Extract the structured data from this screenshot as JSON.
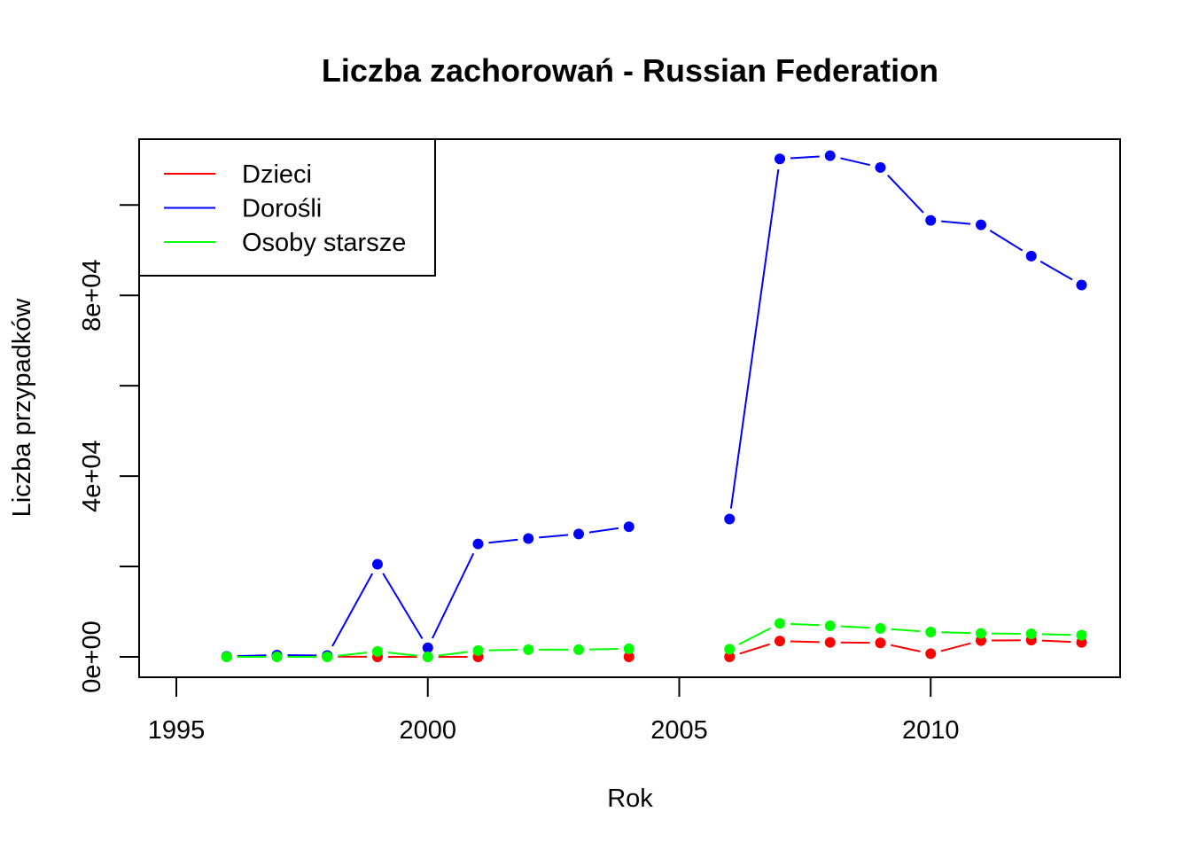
{
  "chart_data": {
    "type": "line",
    "title": "Liczba zachorowań -  Russian Federation",
    "xlabel": "Rok",
    "ylabel": "Liczba przypadków",
    "xlim": [
      1995,
      2013
    ],
    "ylim": [
      0,
      112000
    ],
    "x_ticks": [
      1995,
      2000,
      2005,
      2010
    ],
    "x_tick_labels": [
      "1995",
      "2000",
      "2005",
      "2010"
    ],
    "y_ticks": [
      0,
      20000,
      40000,
      60000,
      80000,
      100000
    ],
    "y_tick_labels": [
      "0e+00",
      "",
      "4e+04",
      "",
      "8e+04",
      ""
    ],
    "grid": false,
    "legend_position": "top-left",
    "x": [
      1996,
      1997,
      1998,
      1999,
      2000,
      2001,
      2002,
      2003,
      2004,
      2005,
      2006,
      2007,
      2008,
      2009,
      2010,
      2011,
      2012,
      2013
    ],
    "series": [
      {
        "name": "Dzieci",
        "color": "#ff0000",
        "values": [
          50,
          60,
          70,
          0,
          0,
          0,
          null,
          null,
          0,
          null,
          0,
          3500,
          3200,
          3100,
          700,
          3600,
          3700,
          3200
        ]
      },
      {
        "name": "Dorośli",
        "color": "#0000ff",
        "values": [
          100,
          400,
          300,
          20500,
          2000,
          25000,
          26200,
          27200,
          28800,
          null,
          30500,
          110200,
          110900,
          108300,
          96600,
          95600,
          88700,
          82300
        ]
      },
      {
        "name": "Osoby starsze",
        "color": "#00ff00",
        "values": [
          0,
          0,
          0,
          1200,
          0,
          1400,
          1600,
          1600,
          1800,
          null,
          1700,
          7400,
          6900,
          6300,
          5500,
          5200,
          5100,
          4800
        ]
      }
    ]
  }
}
